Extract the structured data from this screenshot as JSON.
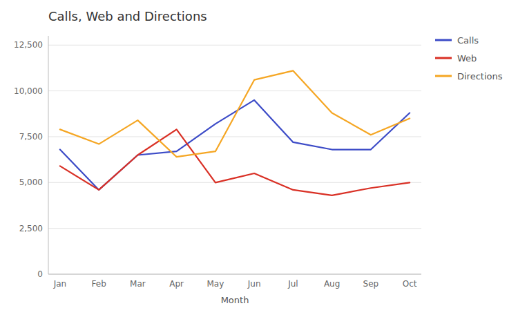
{
  "chart_data": {
    "type": "line",
    "title": "Calls, Web and Directions",
    "xlabel": "Month",
    "categories": [
      "Jan",
      "Feb",
      "Mar",
      "Apr",
      "May",
      "Jun",
      "Jul",
      "Aug",
      "Sep",
      "Oct"
    ],
    "series": [
      {
        "name": "Calls",
        "color": "#3c4bc7",
        "values": [
          6800,
          4600,
          6500,
          6700,
          8200,
          9500,
          7200,
          6800,
          6800,
          8800
        ]
      },
      {
        "name": "Web",
        "color": "#d93025",
        "values": [
          5900,
          4600,
          6500,
          7900,
          5000,
          5500,
          4600,
          4300,
          4700,
          5000
        ]
      },
      {
        "name": "Directions",
        "color": "#f5a623",
        "values": [
          7900,
          7100,
          8400,
          6400,
          6700,
          10600,
          11100,
          8800,
          7600,
          8500
        ]
      }
    ],
    "ylim": [
      0,
      13000
    ],
    "yticks": [
      0,
      {
        "value": 2500,
        "label": "2,500"
      },
      {
        "value": 5000,
        "label": "5,000"
      },
      {
        "value": 7500,
        "label": "7,500"
      },
      {
        "value": 10000,
        "label": "10,000"
      },
      {
        "value": 12500,
        "label": "12,500"
      }
    ],
    "grid": true,
    "legend": "right"
  }
}
